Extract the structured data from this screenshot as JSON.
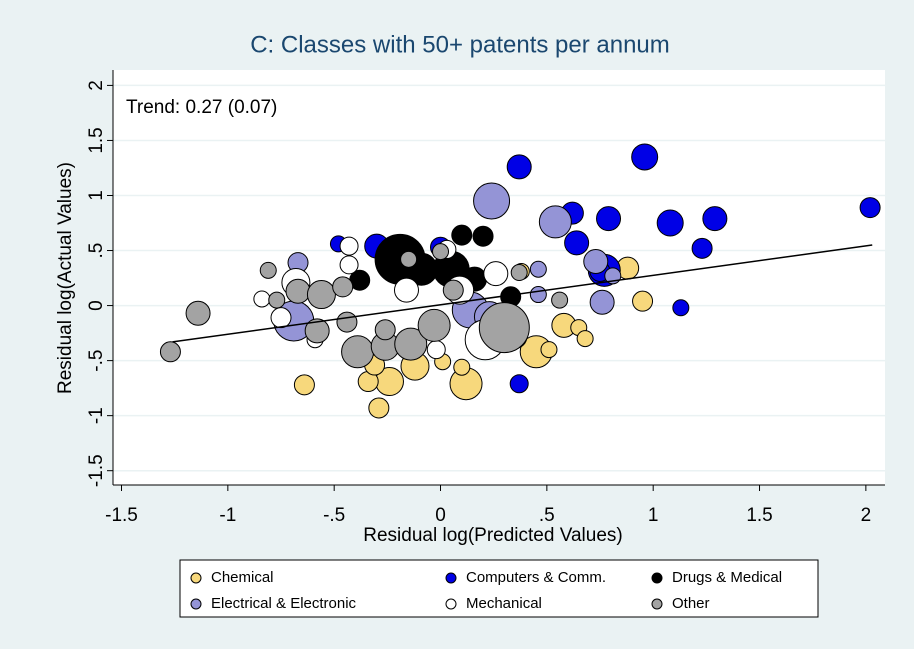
{
  "chart_data": {
    "type": "bubble",
    "title": "C: Classes with 50+ patents per annum",
    "annotation": "Trend: 0.27 (0.07)",
    "x_label": "Residual log(Predicted Values)",
    "y_label": "Residual log(Actual Values)",
    "xlim": [
      -1.54,
      2.09
    ],
    "ylim": [
      -1.63,
      2.14
    ],
    "xticks": [
      -1.5,
      -1,
      {
        "value": -0.5,
        "label": "-.5"
      },
      0,
      {
        "value": 0.5,
        "label": ".5"
      },
      1,
      1.5,
      2
    ],
    "yticks": [
      -1.5,
      -1,
      {
        "value": -0.5,
        "label": "-.5"
      },
      0,
      {
        "value": 0.5,
        "label": ".5"
      },
      1,
      1.5,
      2
    ],
    "grid": true,
    "legend": "bottom",
    "trend_line": {
      "color": "#000000",
      "x": [
        -1.26,
        2.03
      ],
      "y": [
        -0.33,
        0.55
      ]
    },
    "series": [
      {
        "name": "Chemical",
        "color": "#f7d87c",
        "x": [
          0.88,
          0.95,
          0.45,
          0.35,
          0.58,
          0.65,
          0.68,
          0.51,
          -0.24,
          -0.29,
          0.12,
          0.1,
          -0.12,
          -0.64,
          -0.34,
          0.38,
          0.01,
          -0.31
        ],
        "y": [
          0.34,
          0.04,
          -0.42,
          -0.28,
          -0.18,
          -0.2,
          -0.3,
          -0.4,
          -0.69,
          -0.93,
          -0.71,
          -0.56,
          -0.55,
          -0.72,
          -0.69,
          0.31,
          -0.51,
          -0.54
        ],
        "sizes": [
          11,
          10,
          16,
          12,
          12,
          8,
          8,
          8,
          14,
          10,
          16,
          8,
          14,
          10,
          10,
          8,
          8,
          10
        ]
      },
      {
        "name": "Computers & Comm.",
        "color": "#0000e6",
        "x": [
          0.37,
          0.96,
          0.62,
          0.79,
          1.08,
          1.29,
          2.02,
          0.64,
          1.23,
          0.77,
          1.13,
          0.37,
          0.0,
          -0.3,
          -0.48,
          0.75
        ],
        "y": [
          1.26,
          1.35,
          0.84,
          0.79,
          0.75,
          0.79,
          0.89,
          0.57,
          0.52,
          0.32,
          -0.02,
          -0.71,
          0.53,
          0.54,
          0.56,
          0.31
        ],
        "sizes": [
          12,
          13,
          11,
          12,
          13,
          12,
          10,
          12,
          10,
          16,
          8,
          9,
          10,
          12,
          8,
          10
        ]
      },
      {
        "name": "Drugs & Medical",
        "color": "#000000",
        "x": [
          -0.19,
          -0.09,
          0.1,
          0.2,
          0.33,
          -0.38,
          0.05,
          0.16
        ],
        "y": [
          0.42,
          0.33,
          0.64,
          0.63,
          0.08,
          0.23,
          0.33,
          0.24
        ],
        "sizes": [
          25,
          16,
          10,
          10,
          10,
          10,
          18,
          12
        ]
      },
      {
        "name": "Electrical & Electronic",
        "color": "#9494d6",
        "x": [
          0.24,
          0.54,
          0.73,
          0.76,
          -0.69,
          -0.67,
          0.14,
          0.23,
          0.46,
          0.81,
          0.46,
          0.28
        ],
        "y": [
          0.95,
          0.76,
          0.4,
          0.03,
          -0.14,
          0.39,
          -0.04,
          -0.1,
          0.1,
          0.27,
          0.33,
          -0.22
        ],
        "sizes": [
          18,
          16,
          12,
          12,
          20,
          10,
          18,
          15,
          8,
          8,
          8,
          10
        ]
      },
      {
        "name": "Mechanical",
        "color": "#ffffff",
        "x": [
          -0.68,
          -0.43,
          -0.43,
          -0.84,
          -0.75,
          -0.59,
          0.09,
          -0.16,
          0.21,
          -0.02,
          0.26,
          0.03,
          0.32
        ],
        "y": [
          0.21,
          0.54,
          0.37,
          0.06,
          -0.11,
          -0.31,
          0.14,
          0.14,
          -0.31,
          -0.4,
          0.29,
          0.51,
          -0.26
        ],
        "sizes": [
          14,
          9,
          9,
          8,
          10,
          8,
          14,
          12,
          20,
          9,
          12,
          9,
          9
        ]
      },
      {
        "name": "Other",
        "color": "#a3a3a3",
        "x": [
          -1.14,
          -1.27,
          -0.81,
          -0.77,
          -0.67,
          -0.56,
          -0.39,
          -0.26,
          -0.14,
          -0.03,
          0.3,
          0.06,
          0.37,
          0.56,
          -0.26,
          -0.44,
          -0.15,
          -0.58,
          0.0,
          -0.46
        ],
        "y": [
          -0.07,
          -0.42,
          0.32,
          0.05,
          0.13,
          0.1,
          -0.42,
          -0.37,
          -0.35,
          -0.18,
          -0.2,
          0.14,
          0.3,
          0.05,
          -0.22,
          -0.15,
          0.42,
          -0.23,
          0.49,
          0.17
        ],
        "sizes": [
          12,
          10,
          8,
          8,
          12,
          14,
          16,
          14,
          16,
          16,
          25,
          10,
          8,
          8,
          10,
          10,
          8,
          12,
          8,
          10
        ]
      }
    ]
  }
}
